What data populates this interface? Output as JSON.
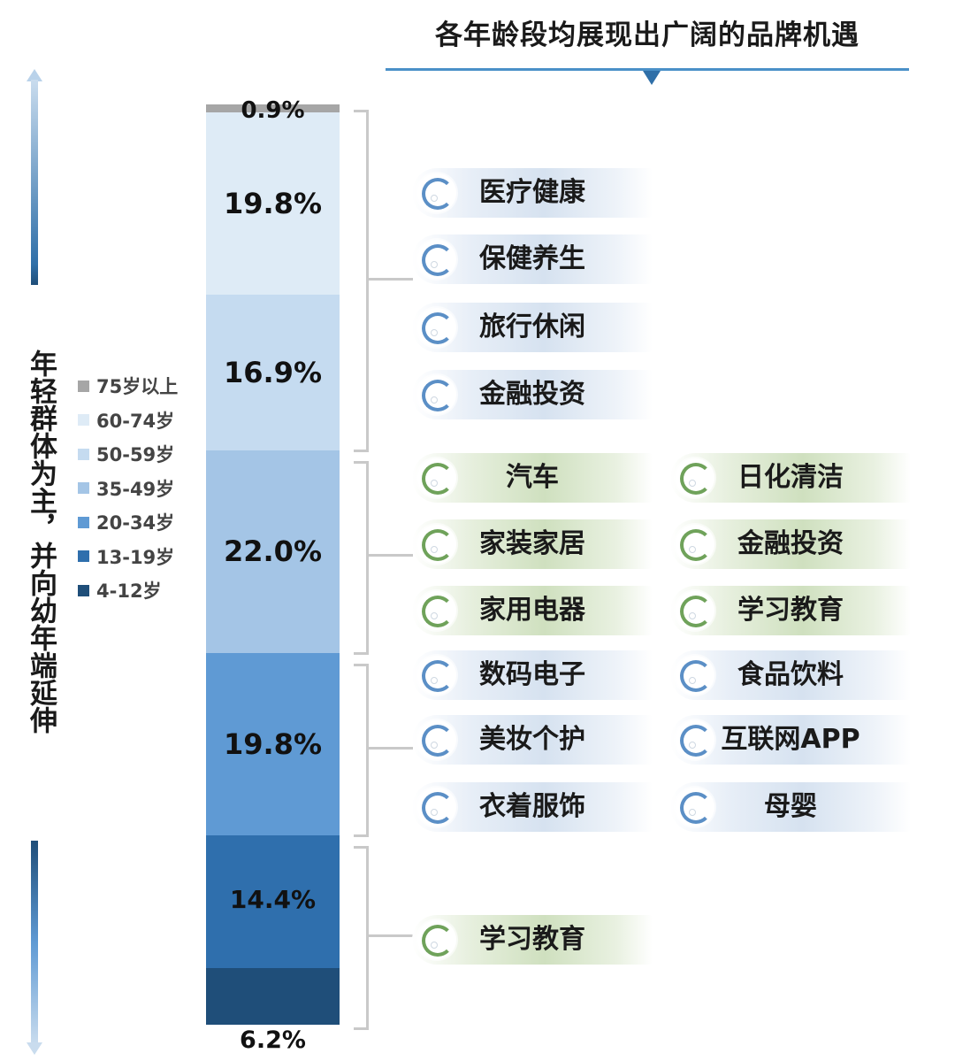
{
  "title": "各年龄段均展现出广阔的品牌机遇",
  "side_text": "年轻群体为主，并向幼年端延伸",
  "colors": {
    "title_rule": "#4a90c8",
    "arrow_top": "#2f6fa8",
    "arrow_bottom": "#c9dcee",
    "bracket": "#c9c9c9"
  },
  "legend": [
    {
      "label": "75岁以上",
      "color": "#a6a6a6"
    },
    {
      "label": "60-74岁",
      "color": "#deebf6"
    },
    {
      "label": "50-59岁",
      "color": "#c5dbf0"
    },
    {
      "label": "35-49岁",
      "color": "#a4c5e6"
    },
    {
      "label": "20-34岁",
      "color": "#5f9ad4"
    },
    {
      "label": "13-19岁",
      "color": "#2f6fad"
    },
    {
      "label": "4-12岁",
      "color": "#1f4e79"
    }
  ],
  "chart_data": {
    "type": "bar",
    "stacked": true,
    "orientation": "vertical",
    "categories": [
      "75岁以上",
      "60-74岁",
      "50-59岁",
      "35-49岁",
      "20-34岁",
      "13-19岁",
      "4-12岁"
    ],
    "values": [
      0.9,
      19.8,
      16.9,
      22.0,
      19.8,
      14.4,
      6.2
    ],
    "labels": [
      "0.9%",
      "19.8%",
      "16.9%",
      "22.0%",
      "19.8%",
      "14.4%",
      "6.2%"
    ],
    "unit": "%"
  },
  "groups": [
    {
      "color": "blue",
      "columns": 1,
      "items": [
        "医疗健康",
        "保健养生",
        "旅行休闲",
        "金融投资"
      ]
    },
    {
      "color": "green",
      "columns": 2,
      "items": [
        "汽车",
        "日化清洁",
        "家装家居",
        "金融投资",
        "家用电器",
        "学习教育"
      ]
    },
    {
      "color": "blue",
      "columns": 2,
      "items": [
        "数码电子",
        "食品饮料",
        "美妆个护",
        "互联网APP",
        "衣着服饰",
        "母婴"
      ]
    },
    {
      "color": "green",
      "columns": 1,
      "items": [
        "学习教育"
      ]
    }
  ]
}
